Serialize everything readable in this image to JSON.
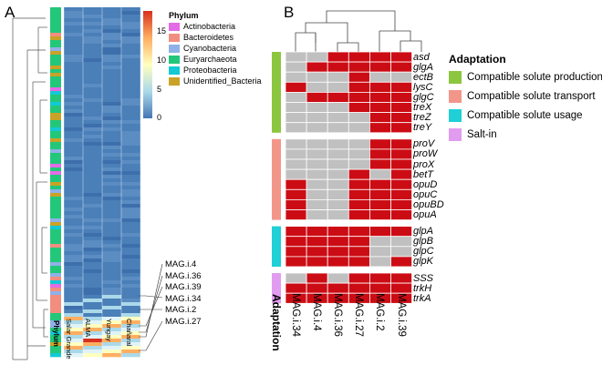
{
  "panel_a": {
    "letter": "A",
    "phylum_label": "Phylum",
    "sites": [
      "Salar Grande",
      "ALMA",
      "Yungay",
      "Chañaral"
    ],
    "legend_title": "Phylum",
    "legend": [
      {
        "name": "Actinobacteria",
        "color": "#e36be6"
      },
      {
        "name": "Bacteroidetes",
        "color": "#f28e80"
      },
      {
        "name": "Cyanobacteria",
        "color": "#8fb1e8"
      },
      {
        "name": "Euryarchaeota",
        "color": "#22c77a"
      },
      {
        "name": "Proteobacteria",
        "color": "#12c9d4"
      },
      {
        "name": "Unidentified_Bacteria",
        "color": "#c9a227"
      }
    ],
    "colorscale": {
      "ticks": [
        "15",
        "10",
        "5",
        "0"
      ],
      "colors": [
        "#d7301f",
        "#fdae61",
        "#ffffbf",
        "#abd9e9",
        "#4575b4"
      ]
    },
    "mag_labels": [
      "MAG.i.4",
      "MAG.i.36",
      "MAG.i.39",
      "MAG.i.34",
      "MAG.i.2",
      "MAG.i.27"
    ]
  },
  "panel_b": {
    "letter": "B",
    "adaptation_label": "Adaptation",
    "legend_title": "Adaptation",
    "categories": [
      {
        "name": "Compatible solute production",
        "color": "#8cc63f"
      },
      {
        "name": "Compatible solute transport",
        "color": "#f3968a"
      },
      {
        "name": "Compatible solute usage",
        "color": "#1fd0d6"
      },
      {
        "name": "Salt-in",
        "color": "#e19cf0"
      }
    ],
    "mags": [
      "MAG.i.34",
      "MAG.i.4",
      "MAG.i.36",
      "MAG.i.27",
      "MAG.i.2",
      "MAG.i.39"
    ],
    "present_color": "#cc0c14",
    "absent_color": "#c0c0c0",
    "groups": [
      {
        "category": 0,
        "genes": [
          {
            "name": "asd",
            "presence": [
              0,
              0,
              1,
              1,
              1,
              1
            ]
          },
          {
            "name": "glgA",
            "presence": [
              0,
              1,
              1,
              1,
              1,
              1
            ]
          },
          {
            "name": "ectB",
            "presence": [
              0,
              0,
              0,
              1,
              0,
              0
            ]
          },
          {
            "name": "lysC",
            "presence": [
              1,
              0,
              0,
              1,
              1,
              1
            ]
          },
          {
            "name": "glgC",
            "presence": [
              0,
              1,
              1,
              1,
              1,
              1
            ]
          },
          {
            "name": "treX",
            "presence": [
              0,
              0,
              0,
              1,
              1,
              1
            ]
          },
          {
            "name": "treZ",
            "presence": [
              0,
              0,
              0,
              0,
              1,
              1
            ]
          },
          {
            "name": "treY",
            "presence": [
              0,
              0,
              0,
              0,
              1,
              1
            ]
          }
        ]
      },
      {
        "category": 1,
        "genes": [
          {
            "name": "proV",
            "presence": [
              0,
              0,
              0,
              0,
              1,
              1
            ]
          },
          {
            "name": "proW",
            "presence": [
              0,
              0,
              0,
              0,
              1,
              1
            ]
          },
          {
            "name": "proX",
            "presence": [
              0,
              0,
              0,
              0,
              1,
              1
            ]
          },
          {
            "name": "betT",
            "presence": [
              0,
              0,
              0,
              1,
              0,
              1
            ]
          },
          {
            "name": "opuD",
            "presence": [
              1,
              0,
              0,
              1,
              1,
              1
            ]
          },
          {
            "name": "opuC",
            "presence": [
              1,
              0,
              0,
              1,
              1,
              1
            ]
          },
          {
            "name": "opuBD",
            "presence": [
              1,
              0,
              0,
              1,
              1,
              1
            ]
          },
          {
            "name": "opuA",
            "presence": [
              1,
              0,
              0,
              1,
              1,
              1
            ]
          }
        ]
      },
      {
        "category": 2,
        "genes": [
          {
            "name": "glpA",
            "presence": [
              1,
              1,
              1,
              1,
              1,
              1
            ]
          },
          {
            "name": "glpB",
            "presence": [
              1,
              1,
              1,
              1,
              0,
              0
            ]
          },
          {
            "name": "glpC",
            "presence": [
              1,
              1,
              1,
              1,
              0,
              0
            ]
          },
          {
            "name": "glpK",
            "presence": [
              1,
              1,
              1,
              1,
              0,
              1
            ]
          }
        ]
      },
      {
        "category": 3,
        "genes": [
          {
            "name": "SSS",
            "presence": [
              0,
              1,
              0,
              1,
              1,
              1
            ]
          },
          {
            "name": "trkH",
            "presence": [
              1,
              1,
              1,
              1,
              1,
              1
            ]
          },
          {
            "name": "trkA",
            "presence": [
              1,
              1,
              1,
              1,
              1,
              1
            ]
          }
        ]
      }
    ]
  }
}
